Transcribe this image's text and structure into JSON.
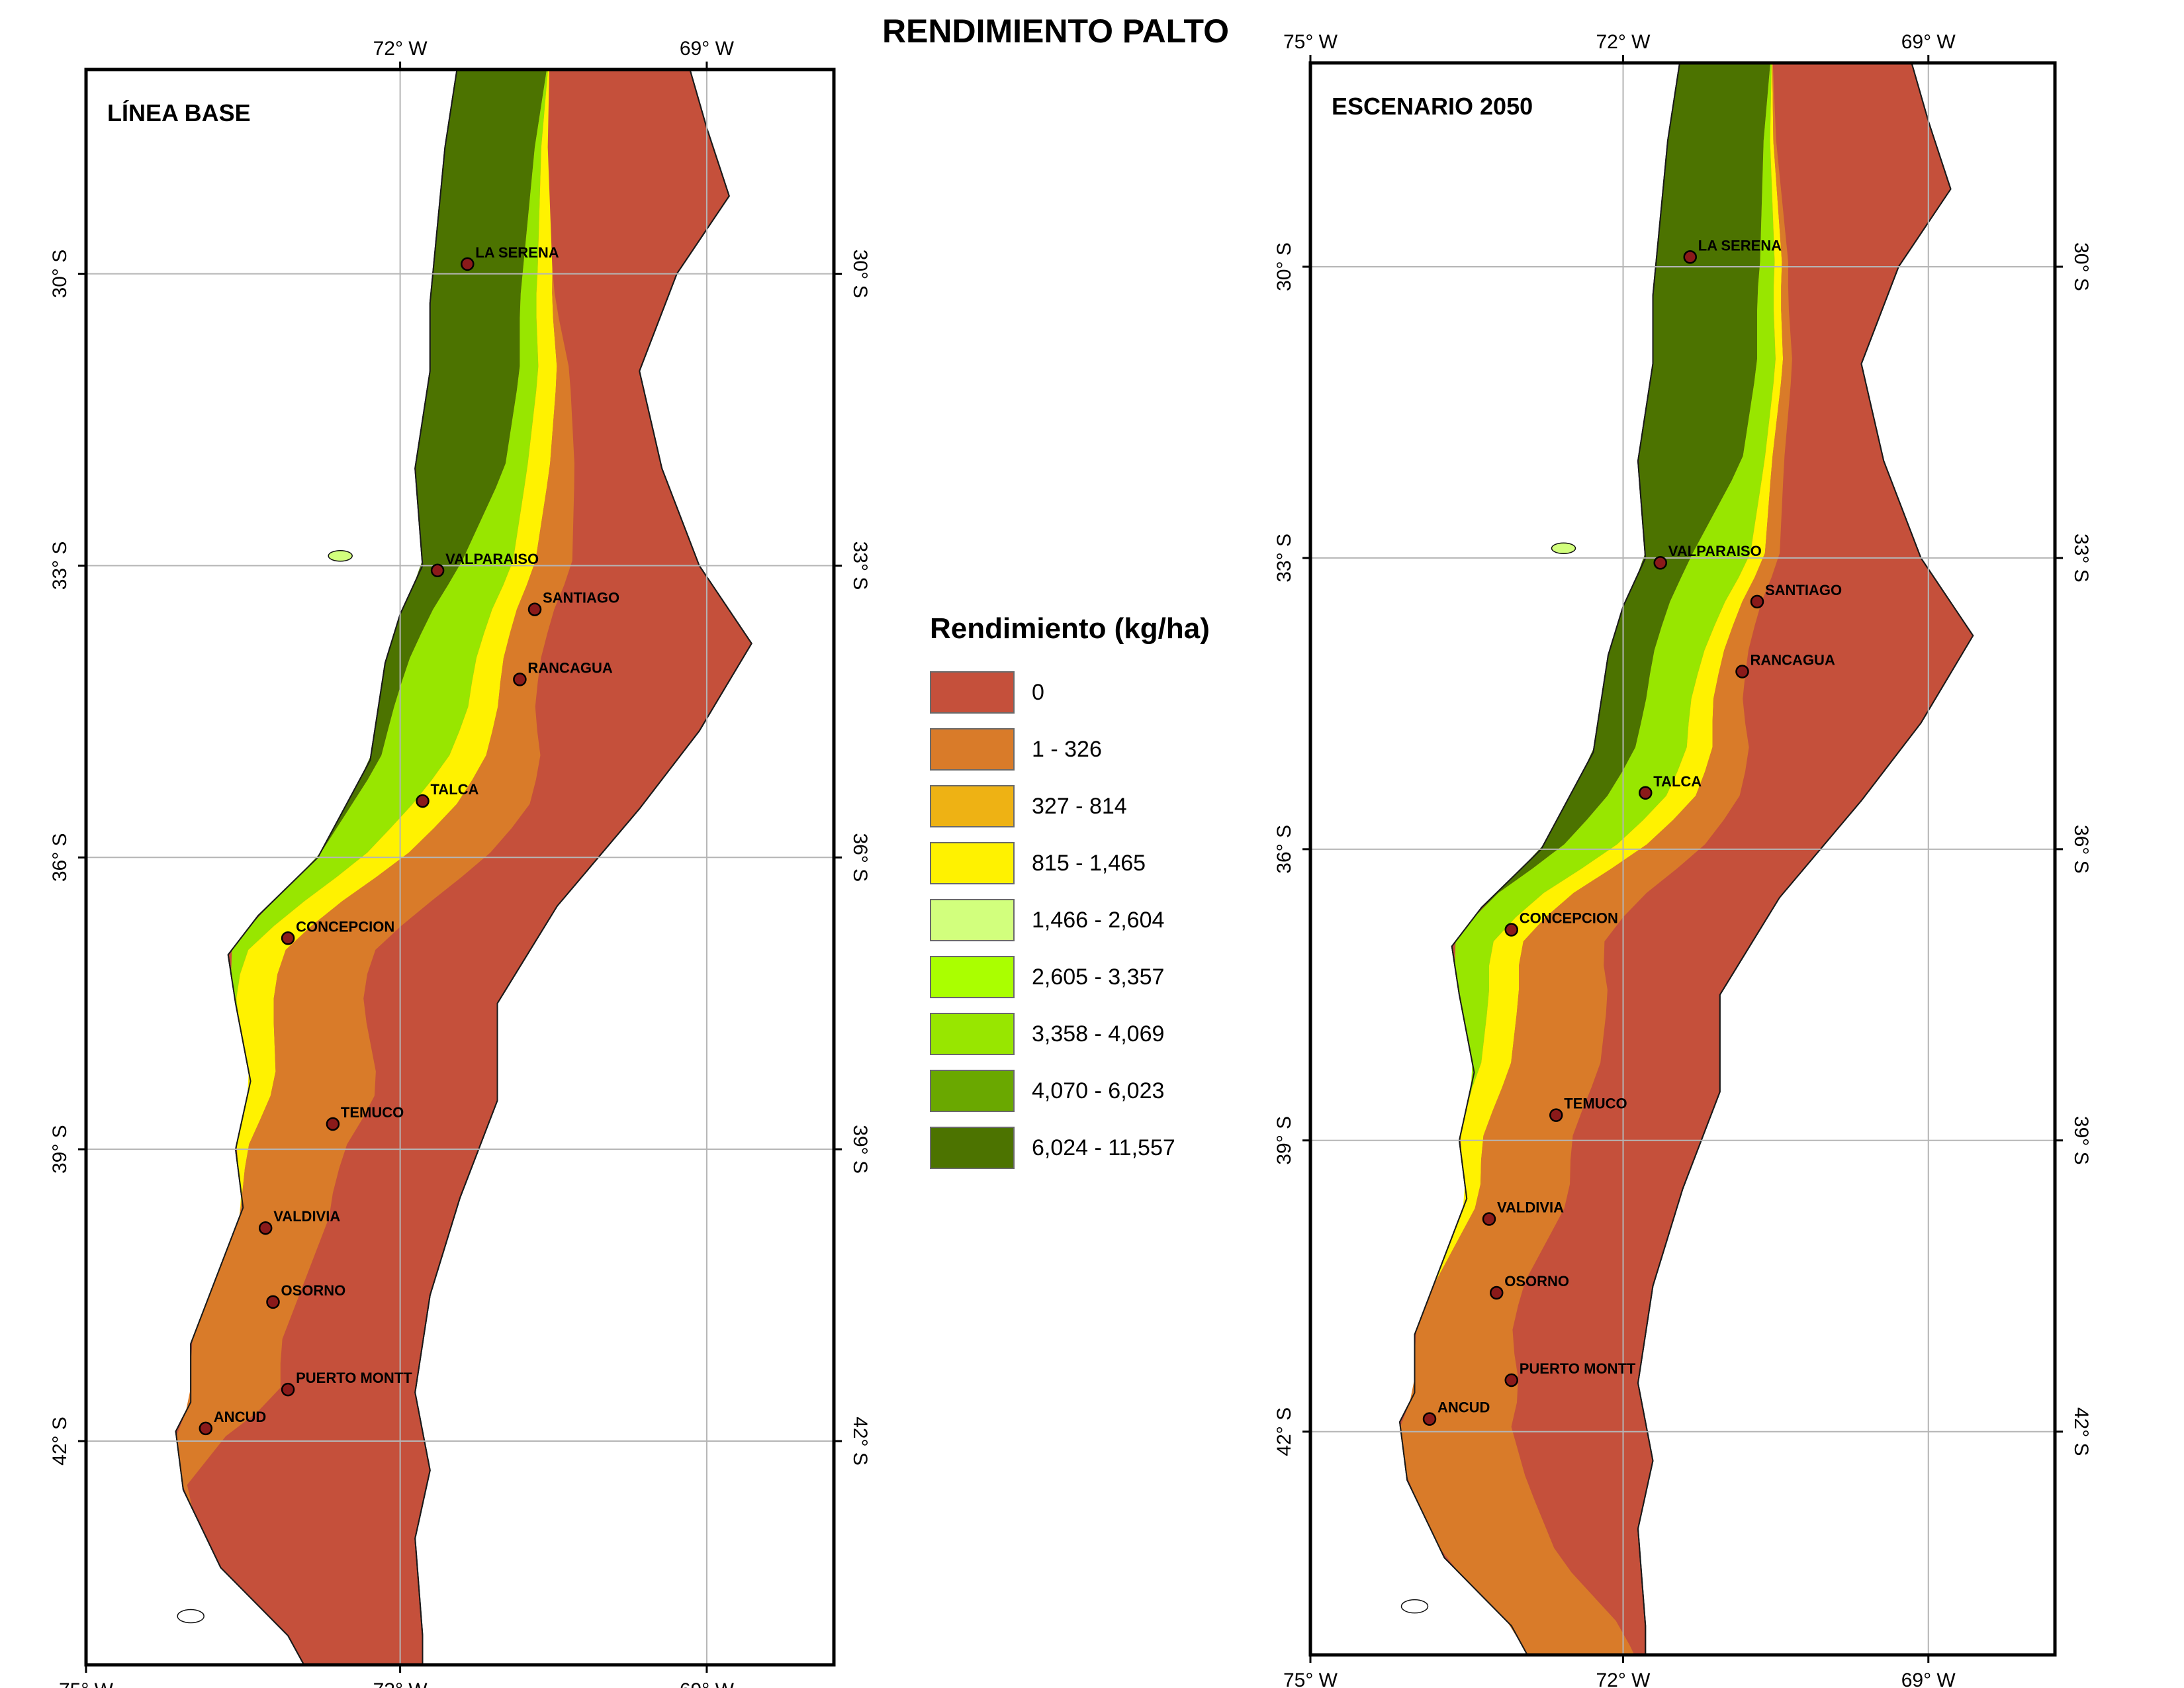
{
  "title": "RENDIMIENTO PALTO",
  "legend": {
    "title": "Rendimiento (kg/ha)",
    "classes": [
      {
        "label": "0",
        "color": "#c5503b"
      },
      {
        "label": "1 - 326",
        "color": "#d97b29"
      },
      {
        "label": "327 - 814",
        "color": "#eeb214"
      },
      {
        "label": "815 - 1,465",
        "color": "#fff200"
      },
      {
        "label": "1,466 - 2,604",
        "color": "#d2ff7d"
      },
      {
        "label": "2,605 - 3,357",
        "color": "#aaff00"
      },
      {
        "label": "3,358 - 4,069",
        "color": "#98e600"
      },
      {
        "label": "4,070 - 6,023",
        "color": "#6aa800"
      },
      {
        "label": "6,024 - 11,557",
        "color": "#4c7300"
      }
    ]
  },
  "longitude_ticks": [
    "75° W",
    "72° W",
    "69° W"
  ],
  "latitude_ticks": [
    "30° S",
    "33° S",
    "36° S",
    "39° S",
    "42° S"
  ],
  "panels": [
    {
      "title": "LÍNEA BASE",
      "cities": [
        "LA SERENA",
        "VALPARAISO",
        "SANTIAGO",
        "RANCAGUA",
        "TALCA",
        "CONCEPCION",
        "TEMUCO",
        "VALDIVIA",
        "OSORNO",
        "PUERTO MONTT",
        "ANCUD"
      ]
    },
    {
      "title": "ESCENARIO 2050",
      "cities": [
        "LA SERENA",
        "VALPARAISO",
        "SANTIAGO",
        "RANCAGUA",
        "TALCA",
        "CONCEPCION",
        "TEMUCO",
        "VALDIVIA",
        "OSORNO",
        "PUERTO MONTT",
        "ANCUD"
      ]
    }
  ]
}
